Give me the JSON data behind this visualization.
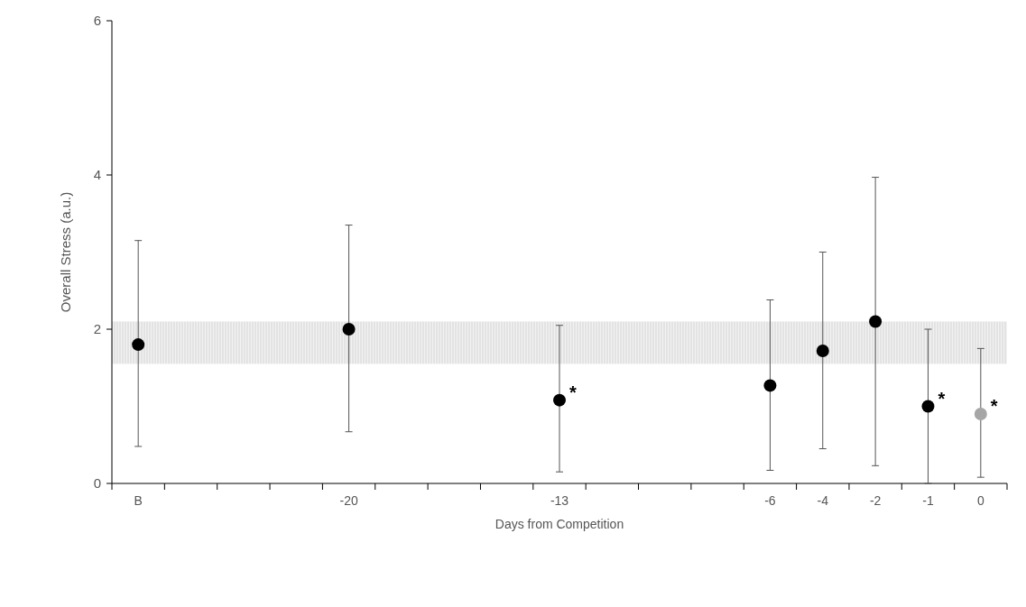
{
  "chart_data": {
    "type": "scatter",
    "xlabel": "Days from Competition",
    "ylabel": "Overall Stress (a.u.)",
    "categories": [
      "B",
      null,
      null,
      null,
      "-20",
      null,
      null,
      null,
      "-13",
      null,
      null,
      null,
      "-6",
      "-4",
      "-2",
      "-1",
      "0"
    ],
    "values": [
      1.8,
      null,
      null,
      null,
      2.0,
      null,
      null,
      null,
      1.08,
      null,
      null,
      null,
      1.27,
      1.72,
      2.1,
      1.0,
      0.9
    ],
    "errors": [
      [
        0.48,
        3.15
      ],
      null,
      null,
      null,
      [
        0.67,
        3.35
      ],
      null,
      null,
      null,
      [
        0.15,
        2.05
      ],
      null,
      null,
      null,
      [
        0.17,
        2.38
      ],
      [
        0.45,
        3.0
      ],
      [
        0.23,
        3.97
      ],
      [
        0,
        2.0
      ],
      [
        0.08,
        1.75
      ]
    ],
    "colors": [
      "#000000",
      null,
      null,
      null,
      "#000000",
      null,
      null,
      null,
      "#000000",
      null,
      null,
      null,
      "#000000",
      "#000000",
      "#000000",
      "#000000",
      "#a6a6a6"
    ],
    "ylim": [
      0,
      6
    ],
    "yticks": [
      0,
      2,
      4,
      6
    ],
    "grid": false,
    "marker": "circle",
    "bands": [
      {
        "axis": "y",
        "from": 1.55,
        "to": 2.1,
        "color": "#d9d9d9"
      }
    ],
    "annotations": [
      {
        "text": "*",
        "x": "-13",
        "y": 1.08
      },
      {
        "text": "*",
        "x": "-1",
        "y": 1.0
      },
      {
        "text": "*",
        "x": "0",
        "y": 0.9
      }
    ]
  }
}
